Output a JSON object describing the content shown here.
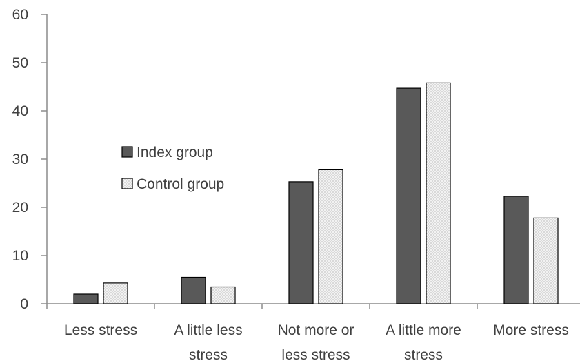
{
  "chart_data": {
    "type": "bar",
    "categories": [
      [
        "Less stress"
      ],
      [
        "A little less",
        "stress"
      ],
      [
        "Not more or",
        "less stress"
      ],
      [
        "A little more",
        "stress"
      ],
      [
        "More stress"
      ]
    ],
    "series": [
      {
        "name": "Index group",
        "values": [
          2,
          5.5,
          25.3,
          44.7,
          22.3
        ],
        "color": "#595959",
        "pattern": "solid"
      },
      {
        "name": "Control group",
        "values": [
          4.3,
          3.5,
          27.8,
          45.8,
          17.8
        ],
        "color": "#f2f2f2",
        "pattern": "dotted"
      }
    ],
    "ylim": [
      0,
      60
    ],
    "yticks": [
      0,
      10,
      20,
      30,
      40,
      50,
      60
    ],
    "title": "",
    "xlabel": "",
    "ylabel": "",
    "grid": false,
    "legend_position": "left-center"
  }
}
